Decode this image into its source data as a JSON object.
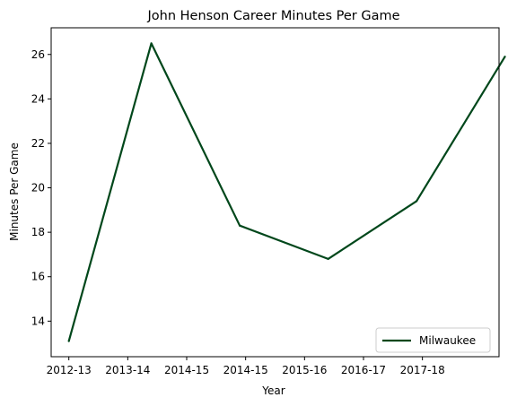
{
  "chart_data": {
    "type": "line",
    "title": "John Henson  Career Minutes Per Game",
    "xlabel": "Year",
    "ylabel": "Minutes Per Game",
    "x_tick_labels": [
      "2012-13",
      "2013-14",
      "2014-15",
      "2014-15",
      "2015-16",
      "2016-17",
      "2017-18"
    ],
    "y_ticks": [
      14,
      16,
      18,
      20,
      22,
      24,
      26
    ],
    "xlim": [
      -0.3,
      7.3
    ],
    "ylim": [
      12.4,
      27.2
    ],
    "grid": false,
    "legend_position": "lower right",
    "series": [
      {
        "name": "Milwaukee",
        "color": "#00471B",
        "x": [
          0,
          1.4,
          2.9,
          4.4,
          5.9,
          7.4
        ],
        "y": [
          13.1,
          26.5,
          18.3,
          16.8,
          19.4,
          25.9
        ]
      }
    ]
  }
}
